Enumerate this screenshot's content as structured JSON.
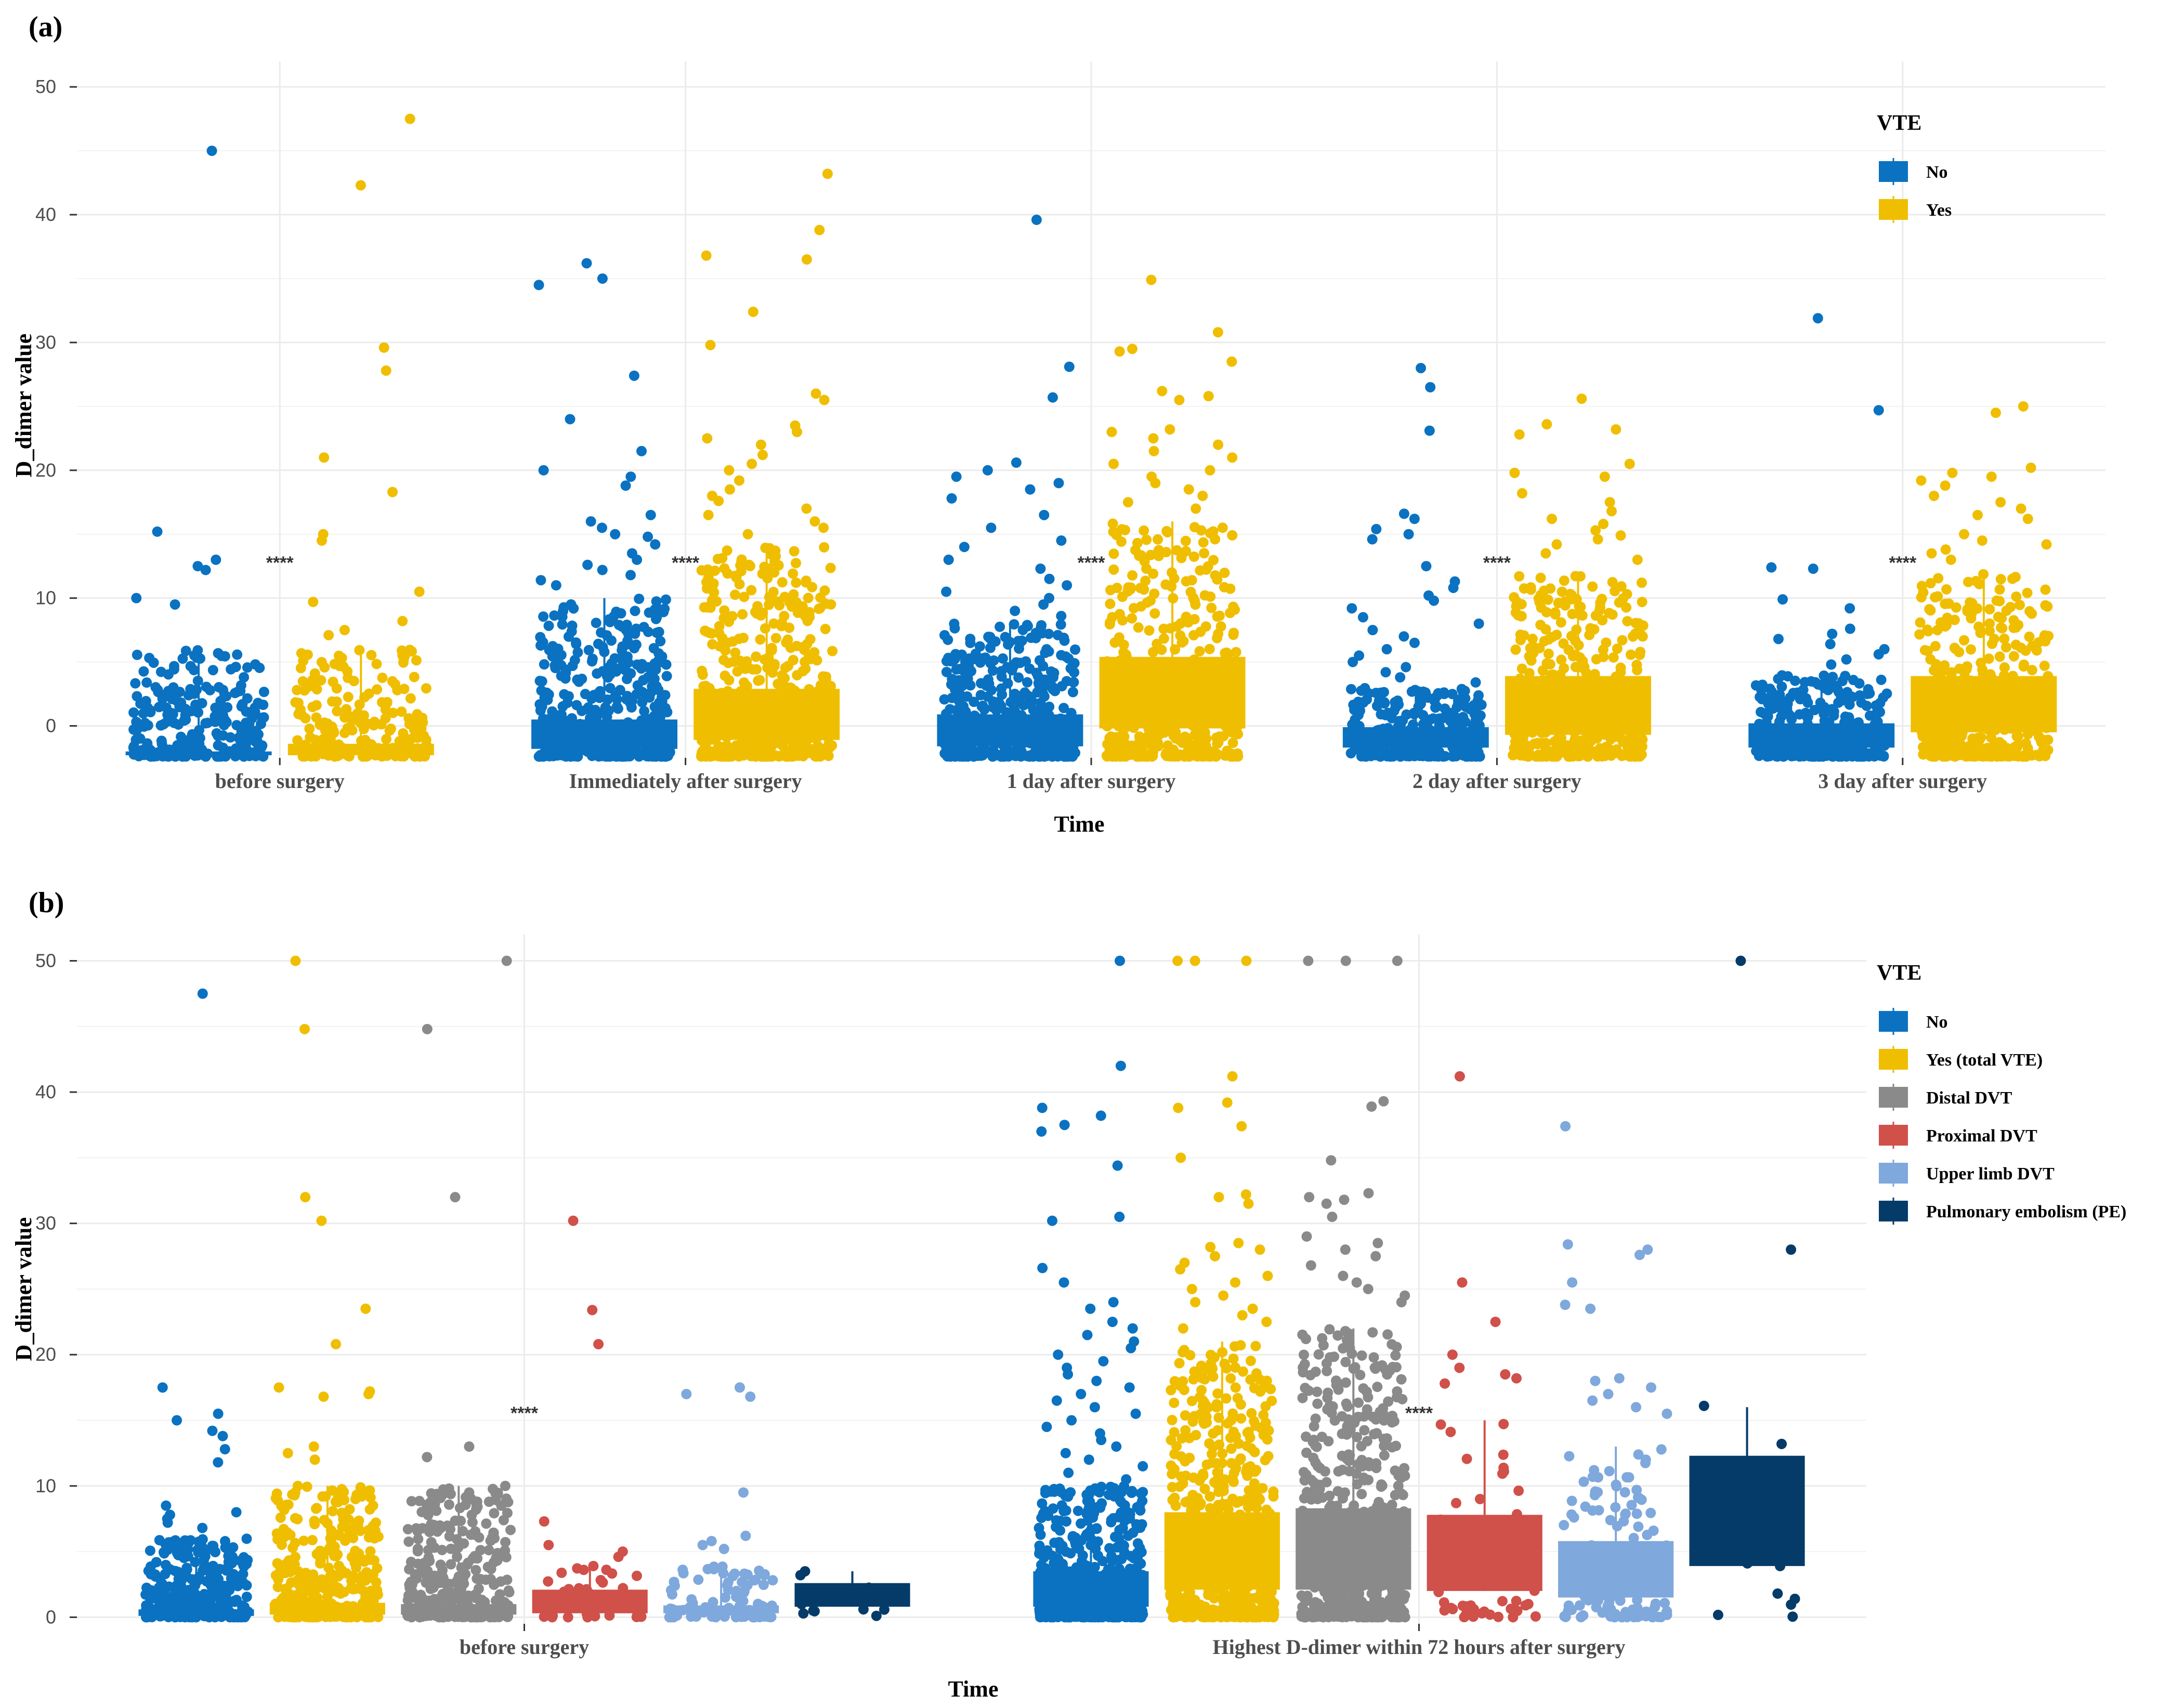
{
  "panels": [
    {
      "label": "(a)",
      "chart_data": {
        "type": "box",
        "xlabel": "Time",
        "ylabel": "D_dimer value",
        "ylim": [
          -2.5,
          52
        ],
        "yticks": [
          0,
          10,
          20,
          30,
          40,
          50
        ],
        "categories": [
          "before surgery",
          "Immediately after surgery",
          "1 day after surgery",
          "2 day after surgery",
          "3 day after surgery"
        ],
        "legend": {
          "title": "VTE",
          "position": "top-right",
          "entries": [
            "No",
            "Yes"
          ]
        },
        "colors": {
          "No": "#0a72c1",
          "Yes": "#f0be00"
        },
        "series": [
          {
            "name": "No",
            "boxes": [
              {
                "q1": -2.3,
                "q3": -2.0,
                "jitter_max": 6,
                "n": 260,
                "outliers": [
                  45,
                  15.2,
                  13,
                  12.5,
                  12.2,
                  10,
                  9.5
                ]
              },
              {
                "q1": -1.8,
                "q3": 0.5,
                "jitter_max": 10,
                "n": 420,
                "outliers": [
                  36.2,
                  35,
                  34.5,
                  27.4,
                  24,
                  21.5,
                  20,
                  19.5,
                  18.8,
                  16.5,
                  16,
                  15.5,
                  15,
                  14.8,
                  14.2,
                  13.5,
                  13,
                  12.6,
                  12.2,
                  11.8,
                  11.4,
                  11
                ]
              },
              {
                "q1": -1.6,
                "q3": 0.9,
                "jitter_max": 8,
                "n": 400,
                "outliers": [
                  39.6,
                  28.1,
                  25.7,
                  20.6,
                  20,
                  19.5,
                  19,
                  18.5,
                  17.8,
                  16.5,
                  15.5,
                  14.5,
                  14,
                  13,
                  12.3,
                  11.5,
                  11,
                  10.5,
                  10,
                  9.5,
                  9,
                  8.6
                ]
              },
              {
                "q1": -1.7,
                "q3": -0.1,
                "jitter_max": 3,
                "n": 300,
                "outliers": [
                  28,
                  26.5,
                  23.1,
                  16.6,
                  16.2,
                  15.4,
                  15,
                  14.6,
                  12.5,
                  11.3,
                  10.8,
                  10.2,
                  9.8,
                  9.2,
                  8.5,
                  8,
                  7.5,
                  7,
                  6.5,
                  6,
                  5.5,
                  5,
                  4.6,
                  4.2,
                  3.8,
                  3.4
                ]
              },
              {
                "q1": -1.7,
                "q3": 0.2,
                "jitter_max": 4,
                "n": 280,
                "outliers": [
                  31.9,
                  24.7,
                  12.4,
                  12.3,
                  9.9,
                  9.2,
                  7.6,
                  7.2,
                  6.8,
                  6.4,
                  6,
                  5.6,
                  5.2,
                  4.8
                ]
              }
            ]
          },
          {
            "name": "Yes",
            "boxes": [
              {
                "q1": -2.3,
                "q3": -1.4,
                "jitter_max": 6,
                "n": 200,
                "outliers": [
                  47.5,
                  42.3,
                  29.6,
                  27.8,
                  21,
                  18.3,
                  15,
                  14.5,
                  10.5,
                  9.7,
                  8.2,
                  7.5,
                  7.1
                ]
              },
              {
                "q1": -1.1,
                "q3": 2.9,
                "jitter_max": 14,
                "n": 420,
                "outliers": [
                  43.2,
                  38.8,
                  36.8,
                  36.5,
                  32.4,
                  29.8,
                  26,
                  25.5,
                  23.5,
                  23,
                  22.5,
                  22,
                  21.2,
                  20.5,
                  20,
                  19.2,
                  18.5,
                  18,
                  17.6,
                  17,
                  16.5,
                  16,
                  15.5,
                  15
                ]
              },
              {
                "q1": -0.2,
                "q3": 5.4,
                "jitter_max": 16,
                "n": 440,
                "outliers": [
                  34.9,
                  30.8,
                  29.5,
                  29.3,
                  28.5,
                  26.2,
                  25.8,
                  25.5,
                  23.2,
                  23,
                  22.5,
                  22,
                  21.5,
                  21,
                  20.5,
                  20,
                  19.5,
                  19,
                  18.5,
                  18,
                  17.5,
                  17
                ]
              },
              {
                "q1": -0.7,
                "q3": 3.9,
                "jitter_max": 12,
                "n": 380,
                "outliers": [
                  25.6,
                  23.6,
                  23.2,
                  22.8,
                  20.5,
                  19.8,
                  19.5,
                  18.2,
                  17.5,
                  16.8,
                  16.2,
                  15.8,
                  15.3,
                  14.9,
                  14.6,
                  14.2,
                  13.5,
                  13
                ]
              },
              {
                "q1": -0.5,
                "q3": 3.9,
                "jitter_max": 12,
                "n": 360,
                "outliers": [
                  25,
                  24.5,
                  20.2,
                  19.8,
                  19.5,
                  19.2,
                  18.8,
                  18,
                  17.5,
                  17,
                  16.5,
                  16.2,
                  15,
                  14.5,
                  14.2,
                  13.8,
                  13.5,
                  13
                ]
              }
            ]
          }
        ],
        "annotations": [
          "****",
          "****",
          "****",
          "****",
          "****"
        ]
      }
    },
    {
      "label": "(b)",
      "chart_data": {
        "type": "box",
        "xlabel": "Time",
        "ylabel": "D_dimer value",
        "ylim": [
          -0.5,
          52
        ],
        "yticks": [
          0,
          10,
          20,
          30,
          40,
          50
        ],
        "categories": [
          "before surgery",
          "Highest D-dimer within 72 hours after surgery"
        ],
        "legend": {
          "title": "VTE",
          "position": "top-right",
          "entries": [
            "No",
            "Yes (total VTE)",
            "Distal DVT",
            "Proximal DVT",
            "Upper limb DVT",
            "Pulmonary embolism (PE)"
          ]
        },
        "colors": {
          "No": "#0a72c1",
          "Yes (total VTE)": "#f0be00",
          "Distal DVT": "#8a8a8a",
          "Proximal DVT": "#d0504a",
          "Upper limb DVT": "#7fa8dc",
          "Pulmonary embolism (PE)": "#053b69"
        },
        "series": [
          {
            "name": "No",
            "boxes": [
              {
                "q1": 0.1,
                "q3": 0.6,
                "jitter_max": 6,
                "n": 320,
                "outliers": [
                  47.5,
                  17.5,
                  15.5,
                  15,
                  14.2,
                  13.8,
                  12.8,
                  11.8,
                  8.5,
                  8,
                  7.8,
                  7.5,
                  7.2,
                  6.8
                ]
              },
              {
                "q1": 0.8,
                "q3": 3.5,
                "jitter_max": 10,
                "n": 520,
                "outliers": [
                  50,
                  42,
                  38.8,
                  38.2,
                  37.5,
                  37,
                  34.4,
                  30.5,
                  30.2,
                  26.6,
                  25.5,
                  24,
                  23.5,
                  22.5,
                  22,
                  21.5,
                  21,
                  20.5,
                  20,
                  19.5,
                  19,
                  18.5,
                  18,
                  17.5,
                  17,
                  16.5,
                  16,
                  15.5,
                  15,
                  14.5,
                  14,
                  13.5,
                  13,
                  12.5,
                  12,
                  11.5,
                  11,
                  10.5
                ]
              }
            ]
          },
          {
            "name": "Yes (total VTE)",
            "boxes": [
              {
                "q1": 0.2,
                "q3": 1.1,
                "jitter_max": 10,
                "n": 320,
                "outliers": [
                  50,
                  44.8,
                  32,
                  30.2,
                  23.5,
                  20.8,
                  17.5,
                  17.2,
                  17,
                  16.8,
                  13,
                  12.5,
                  12,
                  10,
                  9.8,
                  9.5,
                  9.2,
                  9,
                  8.5
                ]
              },
              {
                "q1": 2.1,
                "q3": 8.0,
                "jitter_max": 21,
                "n": 540,
                "outliers": [
                  50,
                  50,
                  50,
                  41.2,
                  39.2,
                  38.8,
                  37.4,
                  35,
                  32.2,
                  32,
                  31.5,
                  28.5,
                  28.2,
                  28,
                  27.5,
                  27,
                  26.5,
                  26,
                  25.5,
                  25,
                  24.5,
                  24,
                  23.5,
                  23,
                  22.5,
                  22
                ]
              }
            ]
          },
          {
            "name": "Distal DVT",
            "boxes": [
              {
                "q1": 0.2,
                "q3": 1.0,
                "jitter_max": 10,
                "n": 300,
                "outliers": [
                  50,
                  44.8,
                  32,
                  13,
                  12.2,
                  10,
                  9.8,
                  9.5,
                  9.2,
                  9,
                  8.8,
                  8.5
                ]
              },
              {
                "q1": 2.1,
                "q3": 8.3,
                "jitter_max": 22,
                "n": 520,
                "outliers": [
                  50,
                  50,
                  50,
                  39.3,
                  38.9,
                  34.8,
                  32.3,
                  32,
                  31.8,
                  31.5,
                  30.5,
                  29,
                  28.5,
                  28,
                  27.5,
                  26.8,
                  26,
                  25.5,
                  25,
                  24.5,
                  24
                ]
              }
            ]
          },
          {
            "name": "Proximal DVT",
            "boxes": [
              {
                "q1": 0.3,
                "q3": 2.1,
                "jitter_max": 4,
                "n": 40,
                "outliers": [
                  30.2,
                  23.4,
                  20.8,
                  7.3,
                  5.5,
                  5,
                  4.6
                ]
              },
              {
                "q1": 2.0,
                "q3": 7.8,
                "jitter_max": 15,
                "n": 60,
                "outliers": [
                  41.2,
                  25.5,
                  22.5,
                  20,
                  19,
                  18.5,
                  18.2,
                  17.8
                ]
              }
            ]
          },
          {
            "name": "Upper limb DVT",
            "boxes": [
              {
                "q1": 0.3,
                "q3": 0.9,
                "jitter_max": 4,
                "n": 90,
                "outliers": [
                  17.5,
                  17,
                  16.8,
                  9.5,
                  6.2,
                  5.8,
                  5.5,
                  5.2
                ]
              },
              {
                "q1": 1.5,
                "q3": 5.8,
                "jitter_max": 13,
                "n": 130,
                "outliers": [
                  37.4,
                  28.4,
                  28,
                  27.6,
                  25.5,
                  23.8,
                  23.5,
                  18.2,
                  18,
                  17.5,
                  17,
                  16.5,
                  16,
                  15.5
                ]
              }
            ]
          },
          {
            "name": "Pulmonary embolism (PE)",
            "boxes": [
              {
                "q1": 0.8,
                "q3": 2.6,
                "jitter_max": 3.5,
                "n": 6,
                "outliers": [
                  3.5,
                  3.2,
                  0.6,
                  0.5
                ]
              },
              {
                "q1": 3.9,
                "q3": 12.3,
                "jitter_max": 16,
                "n": 8,
                "outliers": [
                  50,
                  28,
                  16.1,
                  13.2,
                  4.1,
                  3.9,
                  1.8,
                  1.4
                ]
              }
            ]
          }
        ],
        "annotations": [
          "****",
          "****"
        ]
      }
    }
  ]
}
